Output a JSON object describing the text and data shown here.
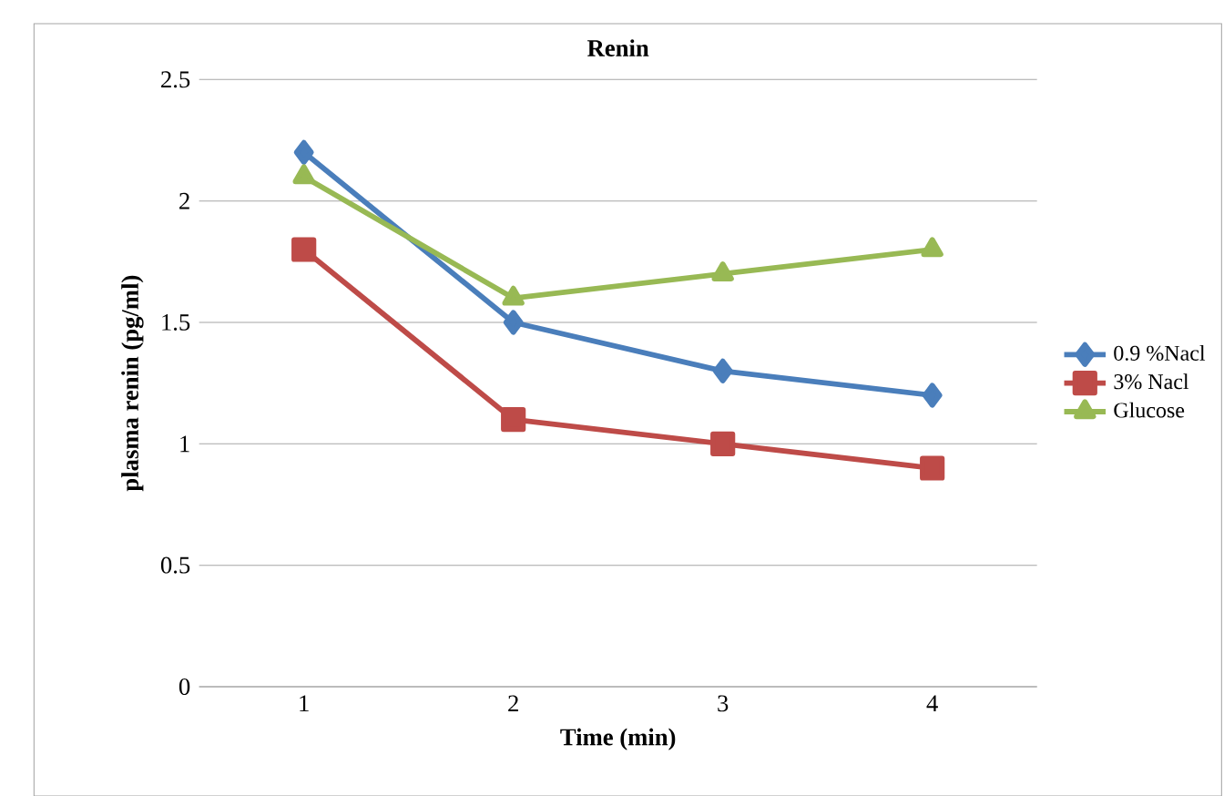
{
  "chart_data": {
    "type": "line",
    "title": "Renin",
    "xlabel": "Time (min)",
    "ylabel": "plasma renin (pg/ml)",
    "categories": [
      "1",
      "2",
      "3",
      "4"
    ],
    "series": [
      {
        "name": "0.9 %Nacl",
        "color": "#4a7ebb",
        "marker": "diamond",
        "values": [
          2.2,
          1.5,
          1.3,
          1.2
        ]
      },
      {
        "name": "3% Nacl",
        "color": "#be4b48",
        "marker": "square",
        "values": [
          1.8,
          1.1,
          1.0,
          0.9
        ]
      },
      {
        "name": "Glucose",
        "color": "#98b954",
        "marker": "triangle",
        "values": [
          2.1,
          1.6,
          1.7,
          1.8
        ]
      }
    ],
    "ylim": [
      0,
      2.5
    ],
    "yticks": [
      0,
      0.5,
      1,
      1.5,
      2,
      2.5
    ],
    "grid": "y",
    "legend": "right",
    "line_style": "solid"
  }
}
